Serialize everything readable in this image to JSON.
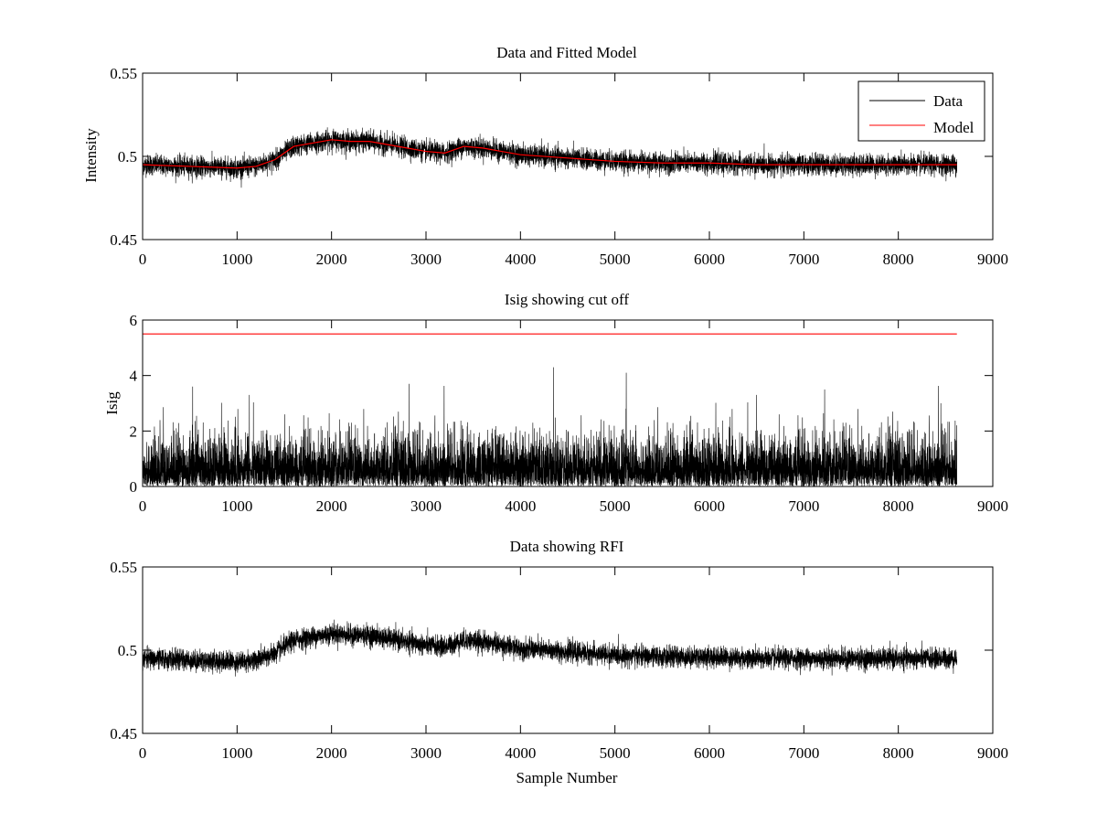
{
  "chart_data": [
    {
      "type": "line",
      "title": "Data and Fitted Model",
      "xlabel": "",
      "ylabel": "Intensity",
      "xlim": [
        0,
        9000
      ],
      "ylim": [
        0.45,
        0.55
      ],
      "xticks": [
        0,
        1000,
        2000,
        3000,
        4000,
        5000,
        6000,
        7000,
        8000,
        9000
      ],
      "xtick_labels": [
        "0",
        "1000",
        "2000",
        "3000",
        "4000",
        "5000",
        "6000",
        "7000",
        "8000",
        "9000"
      ],
      "yticks": [
        0.45,
        0.5,
        0.55
      ],
      "ytick_labels": [
        "0.45",
        "0.5",
        "0.55"
      ],
      "grid": false,
      "legend": "top-right",
      "series": [
        {
          "name": "Data",
          "color": "#000000",
          "x_range": [
            0,
            8620
          ],
          "trend": {
            "x": [
              0,
              500,
              1000,
              1200,
              1400,
              1600,
              1800,
              2000,
              2200,
              2400,
              2600,
              2800,
              3000,
              3200,
              3400,
              3600,
              3800,
              4000,
              4500,
              5000,
              5500,
              6000,
              6500,
              7000,
              7500,
              8000,
              8620
            ],
            "y": [
              0.495,
              0.494,
              0.493,
              0.494,
              0.498,
              0.506,
              0.508,
              0.51,
              0.509,
              0.509,
              0.507,
              0.505,
              0.503,
              0.502,
              0.506,
              0.505,
              0.503,
              0.501,
              0.499,
              0.497,
              0.496,
              0.496,
              0.495,
              0.495,
              0.495,
              0.495,
              0.495
            ]
          },
          "noise_amplitude": 0.005
        },
        {
          "name": "Model",
          "color": "#ff0000",
          "x": [
            0,
            500,
            1000,
            1200,
            1400,
            1600,
            1800,
            2000,
            2200,
            2400,
            2600,
            2800,
            3000,
            3200,
            3400,
            3600,
            3800,
            4000,
            4500,
            5000,
            5500,
            6000,
            6500,
            7000,
            7500,
            8000,
            8620
          ],
          "y": [
            0.495,
            0.494,
            0.493,
            0.494,
            0.498,
            0.506,
            0.508,
            0.51,
            0.509,
            0.509,
            0.507,
            0.505,
            0.503,
            0.502,
            0.506,
            0.505,
            0.503,
            0.501,
            0.499,
            0.497,
            0.496,
            0.496,
            0.495,
            0.495,
            0.495,
            0.495,
            0.495
          ]
        }
      ]
    },
    {
      "type": "line",
      "title": "Isig showing cut off",
      "xlabel": "",
      "ylabel": "Isig",
      "xlim": [
        0,
        9000
      ],
      "ylim": [
        0,
        6
      ],
      "xticks": [
        0,
        1000,
        2000,
        3000,
        4000,
        5000,
        6000,
        7000,
        8000,
        9000
      ],
      "xtick_labels": [
        "0",
        "1000",
        "2000",
        "3000",
        "4000",
        "5000",
        "6000",
        "7000",
        "8000",
        "9000"
      ],
      "yticks": [
        0,
        2,
        4,
        6
      ],
      "ytick_labels": [
        "0",
        "2",
        "4",
        "6"
      ],
      "grid": false,
      "series": [
        {
          "color": "#000000",
          "x_range": [
            0,
            8620
          ],
          "typical_max": 2.2,
          "peaks": [
            {
              "x": 530,
              "y": 3.6
            },
            {
              "x": 1130,
              "y": 3.3
            },
            {
              "x": 2820,
              "y": 3.7
            },
            {
              "x": 4350,
              "y": 4.3
            },
            {
              "x": 5120,
              "y": 4.1
            },
            {
              "x": 6500,
              "y": 3.3
            },
            {
              "x": 7220,
              "y": 3.5
            },
            {
              "x": 8450,
              "y": 3.0
            }
          ]
        },
        {
          "color": "#ff0000",
          "x": [
            0,
            8620
          ],
          "y": [
            5.5,
            5.5
          ]
        }
      ]
    },
    {
      "type": "line",
      "title": "Data showing RFI",
      "xlabel": "Sample Number",
      "ylabel": "",
      "xlim": [
        0,
        9000
      ],
      "ylim": [
        0.45,
        0.55
      ],
      "xticks": [
        0,
        1000,
        2000,
        3000,
        4000,
        5000,
        6000,
        7000,
        8000,
        9000
      ],
      "xtick_labels": [
        "0",
        "1000",
        "2000",
        "3000",
        "4000",
        "5000",
        "6000",
        "7000",
        "8000",
        "9000"
      ],
      "yticks": [
        0.45,
        0.5,
        0.55
      ],
      "ytick_labels": [
        "0.45",
        "0.5",
        "0.55"
      ],
      "grid": false,
      "series": [
        {
          "color": "#000000",
          "x_range": [
            0,
            8620
          ],
          "trend": {
            "x": [
              0,
              500,
              1000,
              1200,
              1400,
              1600,
              1800,
              2000,
              2200,
              2400,
              2600,
              2800,
              3000,
              3200,
              3400,
              3600,
              3800,
              4000,
              4500,
              5000,
              5500,
              6000,
              6500,
              7000,
              7500,
              8000,
              8620
            ],
            "y": [
              0.495,
              0.494,
              0.493,
              0.494,
              0.498,
              0.506,
              0.508,
              0.51,
              0.509,
              0.509,
              0.507,
              0.505,
              0.503,
              0.502,
              0.506,
              0.505,
              0.503,
              0.501,
              0.499,
              0.497,
              0.496,
              0.496,
              0.495,
              0.495,
              0.495,
              0.495,
              0.495
            ]
          },
          "noise_amplitude": 0.005
        }
      ]
    }
  ]
}
